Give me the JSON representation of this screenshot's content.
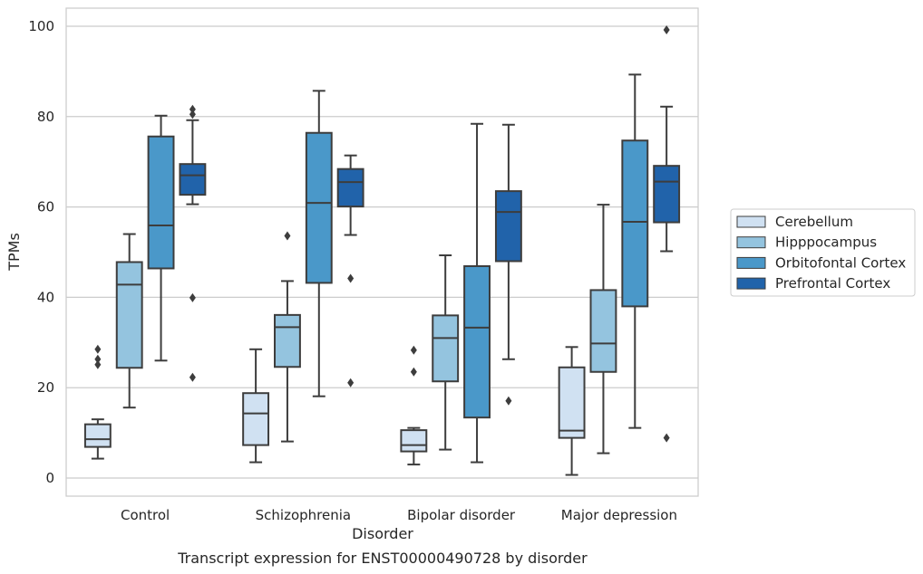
{
  "chart_data": {
    "type": "box",
    "title": "",
    "caption": "Transcript expression for ENST00000490728 by disorder",
    "xlabel": "Disorder",
    "ylabel": "TPMs",
    "ylim": [
      -4,
      104
    ],
    "yticks": [
      0,
      20,
      40,
      60,
      80,
      100
    ],
    "grid": "horizontal",
    "legend_position": "right",
    "categories": [
      "Control",
      "Schizophrenia",
      "Bipolar disorder",
      "Major depression"
    ],
    "series": [
      {
        "name": "Cerebellum",
        "color": "#d0e1f2",
        "boxes": [
          {
            "whisker_low": 4.3,
            "q1": 6.9,
            "median": 8.6,
            "q3": 11.9,
            "whisker_high": 13.0,
            "outliers": [
              25.1,
              26.3,
              28.5
            ]
          },
          {
            "whisker_low": 3.5,
            "q1": 7.3,
            "median": 14.3,
            "q3": 18.8,
            "whisker_high": 28.5,
            "outliers": []
          },
          {
            "whisker_low": 3.0,
            "q1": 5.9,
            "median": 7.3,
            "q3": 10.6,
            "whisker_high": 11.1,
            "outliers": [
              23.5,
              28.3
            ]
          },
          {
            "whisker_low": 0.7,
            "q1": 8.9,
            "median": 10.5,
            "q3": 24.5,
            "whisker_high": 29.0,
            "outliers": []
          }
        ]
      },
      {
        "name": "Hipppocampus",
        "color": "#94c4df",
        "boxes": [
          {
            "whisker_low": 15.6,
            "q1": 24.4,
            "median": 42.8,
            "q3": 47.8,
            "whisker_high": 54.0,
            "outliers": []
          },
          {
            "whisker_low": 8.1,
            "q1": 24.6,
            "median": 33.4,
            "q3": 36.1,
            "whisker_high": 43.6,
            "outliers": [
              53.6
            ]
          },
          {
            "whisker_low": 6.3,
            "q1": 21.4,
            "median": 31.0,
            "q3": 36.0,
            "whisker_high": 49.3,
            "outliers": []
          },
          {
            "whisker_low": 5.5,
            "q1": 23.5,
            "median": 29.8,
            "q3": 41.6,
            "whisker_high": 60.5,
            "outliers": []
          }
        ]
      },
      {
        "name": "Orbitofontal Cortex",
        "color": "#4a98c9",
        "boxes": [
          {
            "whisker_low": 26.0,
            "q1": 46.4,
            "median": 55.9,
            "q3": 75.6,
            "whisker_high": 80.2,
            "outliers": []
          },
          {
            "whisker_low": 18.1,
            "q1": 43.2,
            "median": 60.9,
            "q3": 76.4,
            "whisker_high": 85.7,
            "outliers": []
          },
          {
            "whisker_low": 3.5,
            "q1": 13.4,
            "median": 33.3,
            "q3": 46.9,
            "whisker_high": 78.4,
            "outliers": []
          },
          {
            "whisker_low": 11.1,
            "q1": 38.0,
            "median": 56.7,
            "q3": 74.7,
            "whisker_high": 89.3,
            "outliers": []
          }
        ]
      },
      {
        "name": "Prefrontal Cortex",
        "color": "#2163aa",
        "boxes": [
          {
            "whisker_low": 60.6,
            "q1": 62.7,
            "median": 67.0,
            "q3": 69.5,
            "whisker_high": 79.2,
            "outliers": [
              22.3,
              39.9,
              80.5,
              81.6
            ]
          },
          {
            "whisker_low": 53.8,
            "q1": 60.1,
            "median": 65.5,
            "q3": 68.4,
            "whisker_high": 71.4,
            "outliers": [
              21.1,
              44.2
            ]
          },
          {
            "whisker_low": 26.3,
            "q1": 48.0,
            "median": 58.9,
            "q3": 63.5,
            "whisker_high": 78.2,
            "outliers": [
              17.1
            ]
          },
          {
            "whisker_low": 50.2,
            "q1": 56.6,
            "median": 65.6,
            "q3": 69.1,
            "whisker_high": 82.2,
            "outliers": [
              8.9,
              99.2
            ]
          }
        ]
      }
    ]
  }
}
